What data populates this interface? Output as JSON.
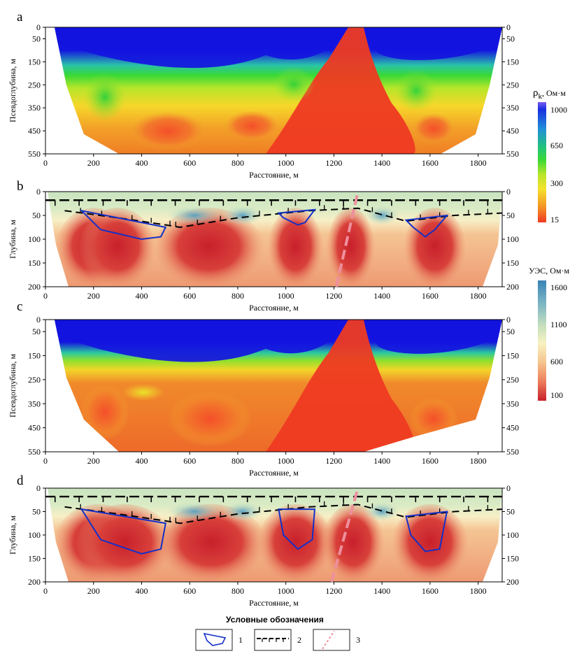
{
  "figure": {
    "panels": [
      {
        "letter": "a",
        "y_axis_label": "Псевдоглубина, м",
        "x_axis_label": "Расстояние, м"
      },
      {
        "letter": "b",
        "y_axis_label": "Глубина, м",
        "x_axis_label": "Расстояние, м"
      },
      {
        "letter": "c",
        "y_axis_label": "Псевдоглубина, м",
        "x_axis_label": "Расстояние, м"
      },
      {
        "letter": "d",
        "y_axis_label": "Глубина, м",
        "x_axis_label": "Расстояние, м"
      }
    ],
    "colorbars": [
      {
        "title_symbol": "ρ",
        "title_subscript": "k",
        "title_unit": ", Ом·м",
        "ticks": [
          "1000",
          "650",
          "300",
          "15"
        ],
        "colors": [
          "#7a5cf0",
          "#1a2fe0",
          "#1f8fd8",
          "#22c47a",
          "#39d935",
          "#b6e62a",
          "#f4e22a",
          "#f59a25",
          "#ef3a22"
        ]
      },
      {
        "title": "УЭС, Ом·м",
        "ticks": [
          "1600",
          "1100",
          "600",
          "100"
        ],
        "colors": [
          "#3a83b6",
          "#7fb7c5",
          "#c7e0bd",
          "#f7f2c2",
          "#f6c58e",
          "#ec7e5c",
          "#c8202c"
        ]
      }
    ],
    "legend": {
      "title": "Условные обозначения",
      "items": [
        {
          "number": "1",
          "symbol": "blue-closed-contour"
        },
        {
          "number": "2",
          "symbol": "black-dashed-boundary-with-ticks"
        },
        {
          "number": "3",
          "symbol": "pink-dashed-fault-line"
        }
      ]
    }
  },
  "chart_data": [
    {
      "type": "heatmap",
      "panel": "a",
      "quantity": "apparent resistivity",
      "x": {
        "ticks": [
          0,
          200,
          400,
          600,
          800,
          1000,
          1200,
          1400,
          1600,
          1800
        ],
        "range": [
          0,
          1900
        ]
      },
      "y": {
        "ticks": [
          0,
          50,
          150,
          250,
          350,
          450,
          550
        ],
        "range": [
          0,
          550
        ],
        "reversed": true,
        "mirrored_right": true
      },
      "colorbar_index": 0
    },
    {
      "type": "heatmap",
      "panel": "b",
      "quantity": "resistivity",
      "x": {
        "ticks": [
          0,
          200,
          400,
          600,
          800,
          1000,
          1200,
          1400,
          1600,
          1800
        ],
        "range": [
          0,
          1900
        ]
      },
      "y": {
        "ticks": [
          0,
          50,
          100,
          150,
          200
        ],
        "range": [
          0,
          200
        ],
        "reversed": true,
        "mirrored_right": true
      },
      "colorbar_index": 1
    },
    {
      "type": "heatmap",
      "panel": "c",
      "quantity": "apparent resistivity",
      "x": {
        "ticks": [
          0,
          200,
          400,
          600,
          800,
          1000,
          1200,
          1400,
          1600,
          1800
        ],
        "range": [
          0,
          1900
        ]
      },
      "y": {
        "ticks": [
          0,
          50,
          150,
          250,
          350,
          450,
          550
        ],
        "range": [
          0,
          550
        ],
        "reversed": true,
        "mirrored_right": true
      },
      "colorbar_index": 0
    },
    {
      "type": "heatmap",
      "panel": "d",
      "quantity": "resistivity",
      "x": {
        "ticks": [
          0,
          200,
          400,
          600,
          800,
          1000,
          1200,
          1400,
          1600,
          1800
        ],
        "range": [
          0,
          1900
        ]
      },
      "y": {
        "ticks": [
          0,
          50,
          100,
          150,
          200
        ],
        "range": [
          0,
          200
        ],
        "reversed": true,
        "mirrored_right": true
      },
      "colorbar_index": 1
    }
  ]
}
